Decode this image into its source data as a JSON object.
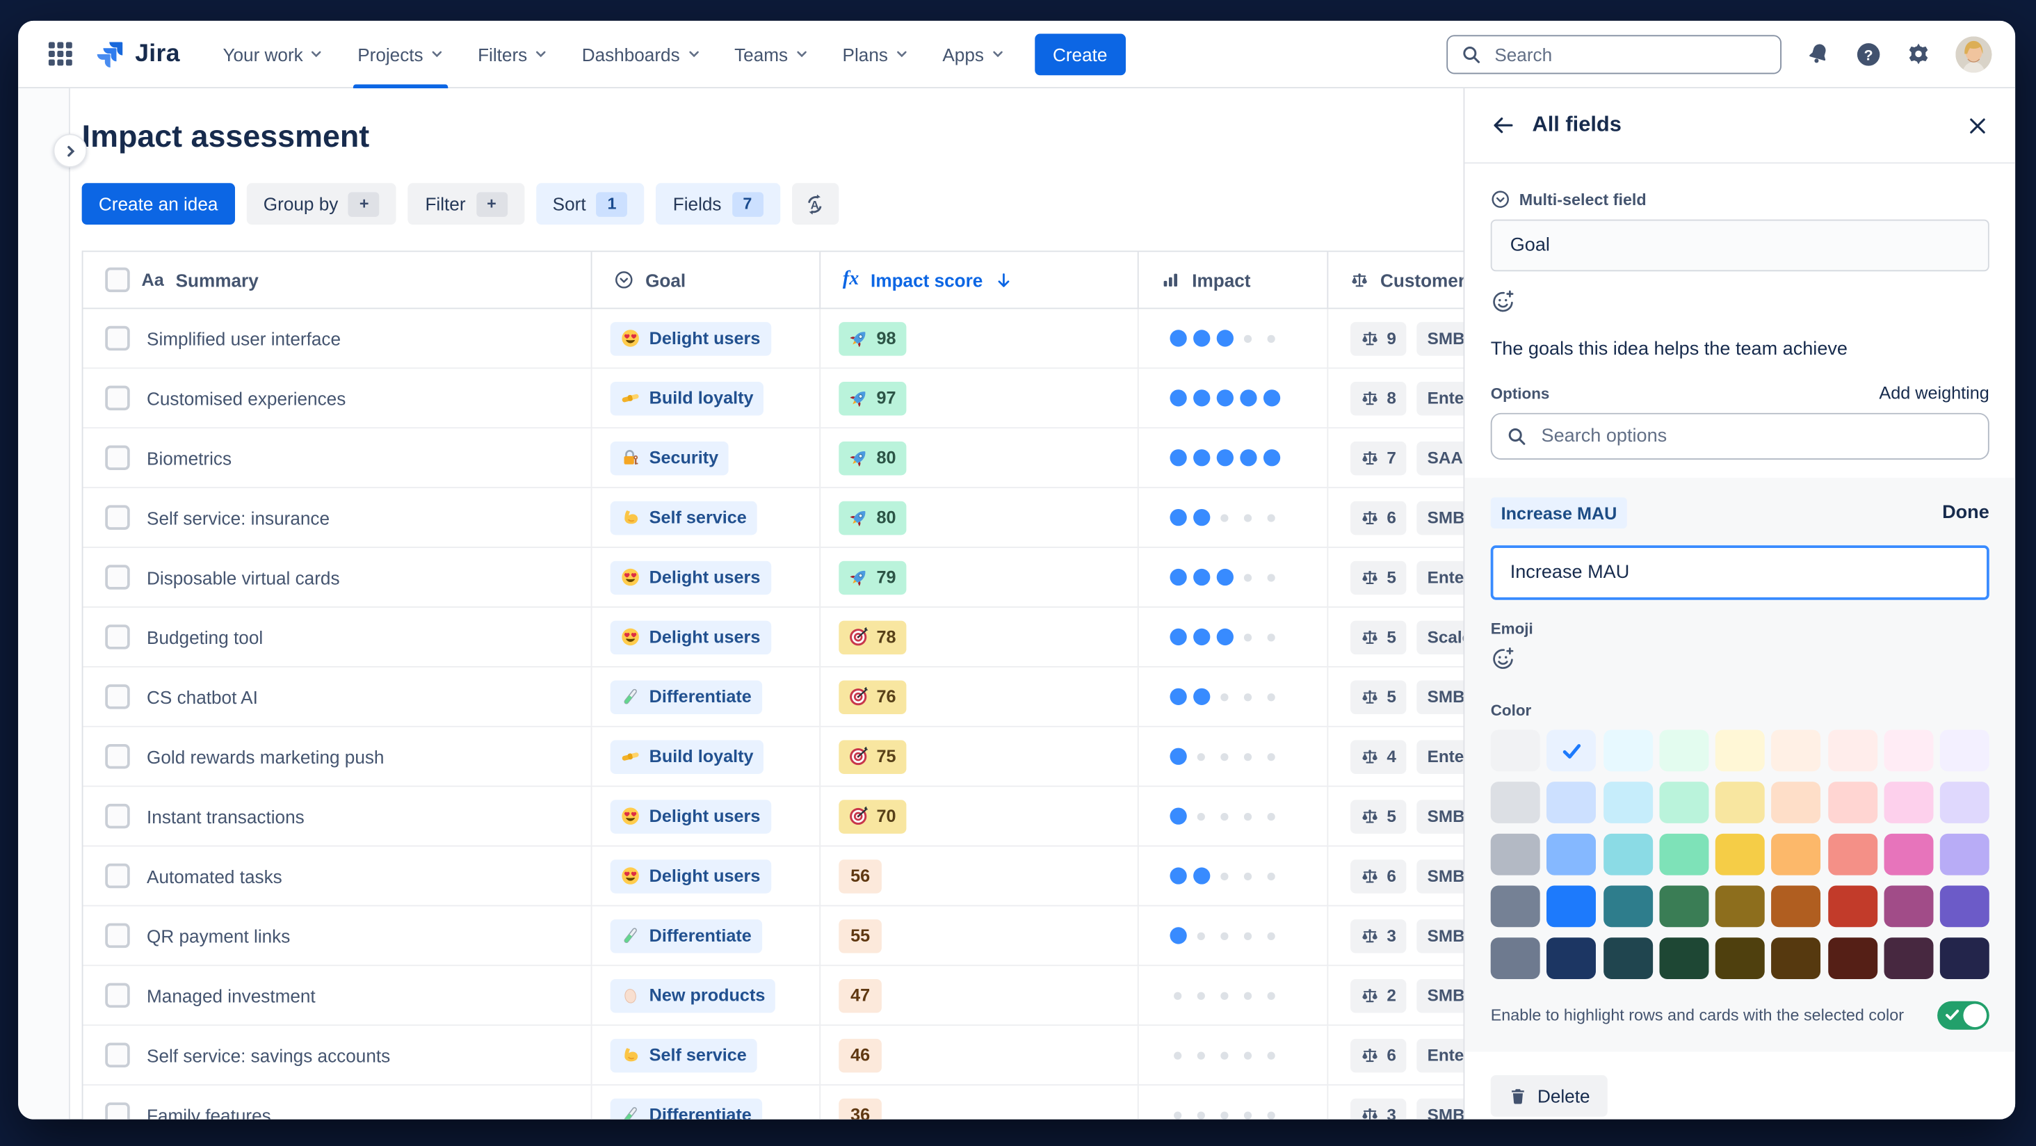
{
  "app": {
    "name": "Jira"
  },
  "nav": {
    "items": [
      {
        "label": "Your work"
      },
      {
        "label": "Projects",
        "active": true
      },
      {
        "label": "Filters"
      },
      {
        "label": "Dashboards"
      },
      {
        "label": "Teams"
      },
      {
        "label": "Plans"
      },
      {
        "label": "Apps"
      }
    ],
    "create_label": "Create",
    "search_placeholder": "Search"
  },
  "page": {
    "title": "Impact assessment"
  },
  "toolbar": {
    "create_idea": "Create an idea",
    "group_by": "Group by",
    "group_by_badge": "+",
    "filter": "Filter",
    "filter_badge": "+",
    "sort": "Sort",
    "sort_badge": "1",
    "fields": "Fields",
    "fields_badge": "7"
  },
  "table": {
    "headers": {
      "summary": "Summary",
      "goal": "Goal",
      "impact_score": "Impact score",
      "impact": "Impact",
      "customer": "Customer"
    },
    "impact_dots_total": 5,
    "rows": [
      {
        "summary": "Simplified user interface",
        "goal": {
          "emoji": "heart-eyes",
          "label": "Delight users"
        },
        "score": {
          "value": "98",
          "style": "green",
          "emoji": "rocket"
        },
        "impact": 3,
        "customer": {
          "weight": "9",
          "segment": "SMB"
        }
      },
      {
        "summary": "Customised experiences",
        "goal": {
          "emoji": "handshake",
          "label": "Build loyalty"
        },
        "score": {
          "value": "97",
          "style": "green",
          "emoji": "rocket"
        },
        "impact": 5,
        "customer": {
          "weight": "8",
          "segment": "Enter"
        }
      },
      {
        "summary": "Biometrics",
        "goal": {
          "emoji": "lock",
          "label": "Security"
        },
        "score": {
          "value": "80",
          "style": "green",
          "emoji": "rocket"
        },
        "impact": 5,
        "customer": {
          "weight": "7",
          "segment": "SAAS"
        }
      },
      {
        "summary": "Self service: insurance",
        "goal": {
          "emoji": "biceps",
          "label": "Self service"
        },
        "score": {
          "value": "80",
          "style": "green",
          "emoji": "rocket"
        },
        "impact": 2,
        "customer": {
          "weight": "6",
          "segment": "SMB"
        }
      },
      {
        "summary": "Disposable virtual cards",
        "goal": {
          "emoji": "heart-eyes",
          "label": "Delight users"
        },
        "score": {
          "value": "79",
          "style": "green",
          "emoji": "rocket"
        },
        "impact": 3,
        "customer": {
          "weight": "5",
          "segment": "Enterp"
        }
      },
      {
        "summary": "Budgeting tool",
        "goal": {
          "emoji": "heart-eyes",
          "label": "Delight users"
        },
        "score": {
          "value": "78",
          "style": "yellow",
          "emoji": "target"
        },
        "impact": 3,
        "customer": {
          "weight": "5",
          "segment": "Scale"
        }
      },
      {
        "summary": "CS chatbot AI",
        "goal": {
          "emoji": "test-tube",
          "label": "Differentiate"
        },
        "score": {
          "value": "76",
          "style": "yellow",
          "emoji": "target"
        },
        "impact": 2,
        "customer": {
          "weight": "5",
          "segment": "SMB"
        }
      },
      {
        "summary": "Gold rewards marketing push",
        "goal": {
          "emoji": "handshake",
          "label": "Build loyalty"
        },
        "score": {
          "value": "75",
          "style": "yellow",
          "emoji": "target"
        },
        "impact": 1,
        "customer": {
          "weight": "4",
          "segment": "Enter"
        }
      },
      {
        "summary": "Instant transactions",
        "goal": {
          "emoji": "heart-eyes",
          "label": "Delight users"
        },
        "score": {
          "value": "70",
          "style": "yellow",
          "emoji": "target"
        },
        "impact": 1,
        "customer": {
          "weight": "5",
          "segment": "SMB"
        }
      },
      {
        "summary": "Automated tasks",
        "goal": {
          "emoji": "heart-eyes",
          "label": "Delight users"
        },
        "score": {
          "value": "56",
          "style": "plain"
        },
        "impact": 2,
        "customer": {
          "weight": "6",
          "segment": "SMB"
        }
      },
      {
        "summary": "QR payment links",
        "goal": {
          "emoji": "test-tube",
          "label": "Differentiate"
        },
        "score": {
          "value": "55",
          "style": "plain"
        },
        "impact": 1,
        "customer": {
          "weight": "3",
          "segment": "SMB"
        }
      },
      {
        "summary": "Managed investment",
        "goal": {
          "emoji": "egg",
          "label": "New products"
        },
        "score": {
          "value": "47",
          "style": "plain"
        },
        "impact": 0,
        "customer": {
          "weight": "2",
          "segment": "SMB"
        }
      },
      {
        "summary": "Self service: savings accounts",
        "goal": {
          "emoji": "biceps",
          "label": "Self service"
        },
        "score": {
          "value": "46",
          "style": "plain"
        },
        "impact": 0,
        "customer": {
          "weight": "6",
          "segment": "Enter"
        }
      },
      {
        "summary": "Family features",
        "goal": {
          "emoji": "test-tube",
          "label": "Differentiate"
        },
        "score": {
          "value": "36",
          "style": "plain"
        },
        "impact": 0,
        "customer": {
          "weight": "3",
          "segment": "SMB"
        }
      }
    ]
  },
  "panel": {
    "title": "All fields",
    "field_type_label": "Multi-select field",
    "field_name": "Goal",
    "description": "The goals this idea helps the team achieve",
    "options_label": "Options",
    "add_weighting": "Add weighting",
    "search_placeholder": "Search options",
    "option_chip": "Increase MAU",
    "done_label": "Done",
    "option_input_value": "Increase MAU",
    "emoji_label": "Emoji",
    "color_label": "Color",
    "toggle_label": "Enable to highlight rows and cards with the selected color",
    "toggle_on": true,
    "delete_label": "Delete",
    "selected_color": {
      "row": 0,
      "col": 1
    },
    "palette": [
      [
        "#F1F2F4",
        "#E9F2FF",
        "#E7F9FF",
        "#E3FCEF",
        "#FFF7D6",
        "#FFF0E5",
        "#FFEDEB",
        "#FFECF5",
        "#F3F0FF"
      ],
      [
        "#DCDFE4",
        "#CCE0FF",
        "#C6EDFB",
        "#BAF3DB",
        "#F8E6A0",
        "#FEDEC8",
        "#FFD5D2",
        "#FDD0EC",
        "#DFD8FD"
      ],
      [
        "#B3B9C4",
        "#85B8FF",
        "#8BDBE5",
        "#7EE2B8",
        "#F5CD47",
        "#FCB86A",
        "#F49087",
        "#E774BB",
        "#B8ACF6"
      ],
      [
        "#758195",
        "#1D7AFC",
        "#2E7D8C",
        "#3A7D55",
        "#8D6E1D",
        "#B05E20",
        "#C23B2A",
        "#A14C88",
        "#6C5BC8"
      ],
      [
        "#6E7A8F",
        "#1C3663",
        "#20454F",
        "#1E4734",
        "#4F400E",
        "#56390F",
        "#551F16",
        "#472840",
        "#23254B"
      ]
    ]
  },
  "colors": {
    "accent": "#0C66E4",
    "toggle_on": "#22A06B",
    "dot_filled": "#388BFF",
    "selected_check": "#1D7AFC"
  }
}
